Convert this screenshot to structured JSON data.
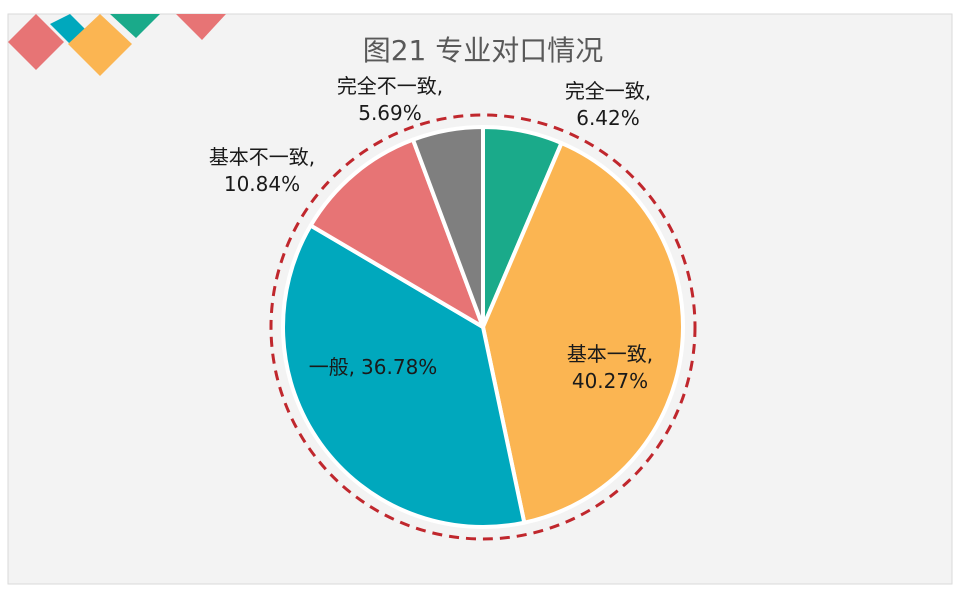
{
  "chart_data": {
    "type": "pie",
    "title": "图21 专业对口情况",
    "categories": [
      "完全一致,",
      "基本一致,",
      "一般,",
      "基本不一致,",
      "完全不一致,"
    ],
    "values": [
      6.42,
      40.27,
      36.78,
      10.84,
      5.69
    ],
    "value_labels": [
      "6.42%",
      "40.27%",
      "36.78%",
      "10.84%",
      "5.69%"
    ],
    "colors": [
      "#1aaa8a",
      "#fbb552",
      "#00a8bd",
      "#e77475",
      "#7f7f7f"
    ],
    "start_angle": 0,
    "direction": "clockwise"
  }
}
